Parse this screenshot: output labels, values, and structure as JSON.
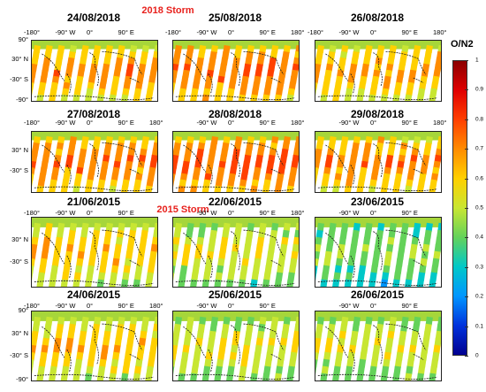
{
  "storms": [
    {
      "label": "2018 Storm",
      "color": "#e8211d"
    },
    {
      "label": "2015 Storm",
      "color": "#e8211d"
    }
  ],
  "panels": [
    {
      "date": "24/08/2018",
      "level": 0.72
    },
    {
      "date": "25/08/2018",
      "level": 0.78
    },
    {
      "date": "26/08/2018",
      "level": 0.7
    },
    {
      "date": "27/08/2018",
      "level": 0.76
    },
    {
      "date": "28/08/2018",
      "level": 0.8
    },
    {
      "date": "29/08/2018",
      "level": 0.74
    },
    {
      "date": "21/06/2015",
      "level": 0.66
    },
    {
      "date": "22/06/2015",
      "level": 0.58
    },
    {
      "date": "23/06/2015",
      "level": 0.48
    },
    {
      "date": "24/06/2015",
      "level": 0.66
    },
    {
      "date": "25/06/2015",
      "level": 0.6
    },
    {
      "date": "26/06/2015",
      "level": 0.58
    }
  ],
  "map_ticks": {
    "lon": [
      "-180°",
      "-90° W",
      "0°",
      "90° E",
      "180°"
    ],
    "lat_full": [
      "90°",
      "30° N",
      "-30° S",
      "-90°"
    ],
    "lat_short": [
      "30° N",
      "-30° S"
    ]
  },
  "colorbar": {
    "title": "O/N2",
    "labels": [
      "1",
      "0.9",
      "0.8",
      "0.7",
      "0.6",
      "0.5",
      "0.4",
      "0.3",
      "0.2",
      "0.1",
      "0"
    ],
    "stops": [
      "#8b0000",
      "#e00000",
      "#ff4000",
      "#ff8c00",
      "#ffd000",
      "#c8e632",
      "#64d25a",
      "#00c8c8",
      "#0096ff",
      "#0032dc",
      "#000090"
    ]
  }
}
